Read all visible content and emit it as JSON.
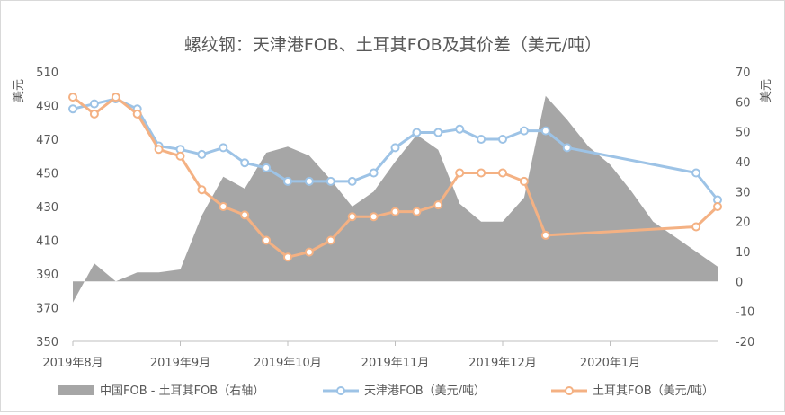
{
  "chart_data": {
    "type": "line",
    "title": "螺纹钢：天津港FOB、土耳其FOB及其价差（美元/吨）",
    "ylabel_left": "美元",
    "ylabel_right": "美元",
    "ylim_left": [
      350,
      510
    ],
    "ylim_right": [
      -20,
      70
    ],
    "yticks_left": [
      "350",
      "370",
      "390",
      "410",
      "430",
      "450",
      "470",
      "490",
      "510"
    ],
    "yticks_right": [
      "-20",
      "-10",
      "0",
      "10",
      "20",
      "30",
      "40",
      "50",
      "60",
      "70"
    ],
    "x_labels": [
      "2019年8月",
      "2019年9月",
      "2019年10月",
      "2019年11月",
      "2019年12月",
      "2020年1月"
    ],
    "legend": [
      "中国FOB - 土耳其FOB（右轴）",
      "天津港FOB（美元/吨）",
      "土耳其FOB（美元/吨）"
    ],
    "series": [
      {
        "name": "中国FOB - 土耳其FOB（右轴）",
        "axis": "right",
        "kind": "area",
        "color": "#a6a6a6",
        "x": [
          0,
          1,
          2,
          3,
          4,
          5,
          6,
          7,
          8,
          9,
          10,
          11,
          12,
          13,
          14,
          15,
          16,
          17,
          18,
          19,
          20,
          21,
          22,
          23,
          24,
          25,
          26,
          27,
          30
        ],
        "y": [
          -7,
          6,
          0,
          3,
          3,
          4,
          22,
          35,
          31,
          43,
          45,
          42,
          34,
          25,
          30,
          40,
          49,
          44,
          26,
          20,
          20,
          28,
          62,
          54,
          45,
          39,
          30,
          20,
          5
        ]
      },
      {
        "name": "天津港FOB（美元/吨）",
        "axis": "left",
        "kind": "line",
        "color": "#9dc3e6",
        "x": [
          0,
          1,
          2,
          3,
          4,
          5,
          6,
          7,
          8,
          9,
          10,
          11,
          12,
          13,
          14,
          15,
          16,
          17,
          18,
          19,
          20,
          21,
          22,
          23,
          29,
          30
        ],
        "y": [
          488,
          491,
          494,
          488,
          466,
          464,
          461,
          465,
          456,
          453,
          445,
          445,
          445,
          445,
          450,
          465,
          474,
          474,
          476,
          470,
          470,
          475,
          475,
          465,
          450,
          434
        ]
      },
      {
        "name": "土耳其FOB（美元/吨）",
        "axis": "left",
        "kind": "line",
        "color": "#f4b183",
        "x": [
          0,
          1,
          2,
          3,
          4,
          5,
          6,
          7,
          8,
          9,
          10,
          11,
          12,
          13,
          14,
          15,
          16,
          17,
          18,
          19,
          20,
          21,
          22,
          29,
          30
        ],
        "y": [
          495,
          485,
          495,
          485,
          464,
          460,
          440,
          430,
          425,
          410,
          400,
          403,
          410,
          424,
          424,
          427,
          427,
          431,
          450,
          450,
          450,
          445,
          413,
          418,
          430
        ]
      }
    ]
  }
}
